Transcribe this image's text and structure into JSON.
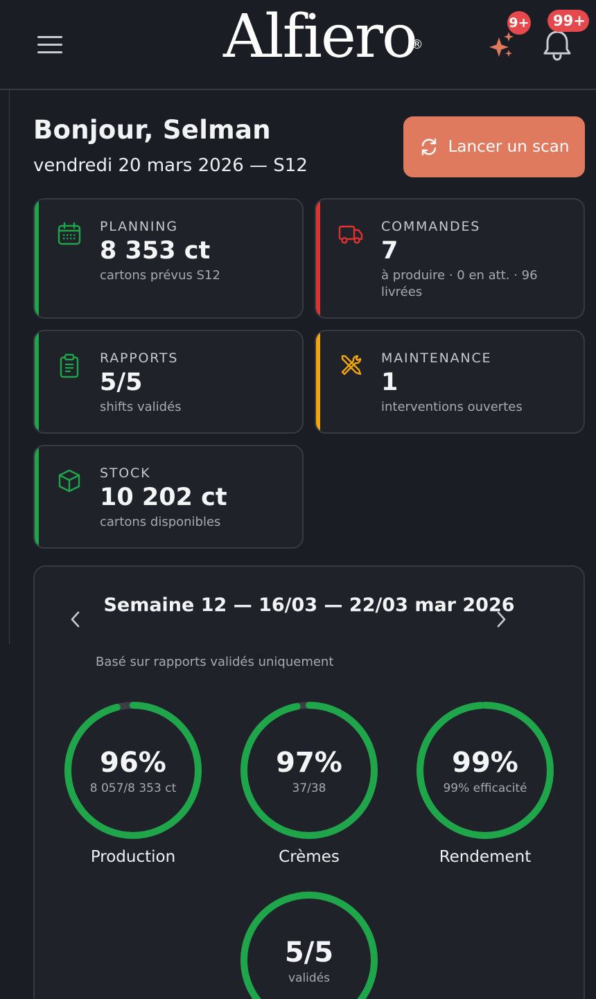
{
  "header": {
    "logo": "Alfiero",
    "logo_mark": "®",
    "sparkle_badge": "9+",
    "bell_badge": "99+",
    "sparkle_icon": "sparkle-icon",
    "bell_icon": "bell-icon",
    "menu_icon": "hamburger-menu-icon"
  },
  "greeting": {
    "title": "Bonjour, Selman",
    "date": "vendredi 20 mars 2026 — S12"
  },
  "scan_button": {
    "label": "Lancer un scan",
    "color": "#e07a5f"
  },
  "cards": [
    {
      "title": "PLANNING",
      "value": "8 353 ct",
      "sub": "cartons prévus S12",
      "accent": "#1fa64a",
      "icon": "calendar-icon"
    },
    {
      "title": "COMMANDES",
      "value": "7",
      "sub": "à produire · 0 en att. · 96 livrées",
      "accent": "#e03131",
      "icon": "truck-icon"
    },
    {
      "title": "RAPPORTS",
      "value": "5/5",
      "sub": "shifts validés",
      "accent": "#1fa64a",
      "icon": "clipboard-icon"
    },
    {
      "title": "MAINTENANCE",
      "value": "1",
      "sub": "interventions ouvertes",
      "accent": "#f2a50c",
      "icon": "tools-icon"
    },
    {
      "title": "STOCK",
      "value": "10 202 ct",
      "sub": "cartons disponibles",
      "accent": "#1fa64a",
      "icon": "box-icon"
    }
  ],
  "week": {
    "title": "Semaine 12 — 16/03 — 22/03 mar 2026",
    "note": "Basé sur rapports validés uniquement",
    "rings": [
      {
        "value": "96%",
        "sub": "8 057/8 353 ct",
        "label": "Production",
        "fraction": 0.96
      },
      {
        "value": "97%",
        "sub": "37/38",
        "label": "Crèmes",
        "fraction": 0.97
      },
      {
        "value": "99%",
        "sub": "99% efficacité",
        "label": "Rendement",
        "fraction": 0.99
      },
      {
        "value": "5/5",
        "sub": "validés",
        "label": "",
        "fraction": 1.0
      }
    ],
    "ring_color": "#1fa64a"
  }
}
